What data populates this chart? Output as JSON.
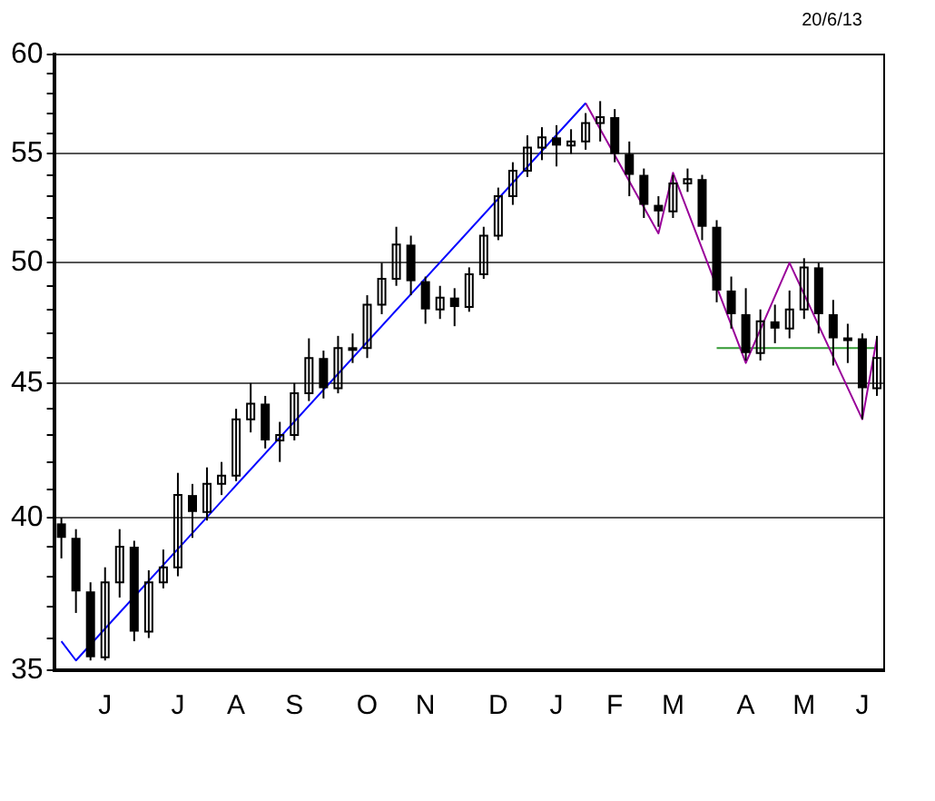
{
  "chart_data": {
    "type": "candlestick",
    "annotations": [
      "20/6/13"
    ],
    "categories": [
      null,
      null,
      null,
      "J",
      null,
      null,
      null,
      null,
      "J",
      null,
      null,
      null,
      "A",
      null,
      null,
      null,
      "S",
      null,
      null,
      null,
      null,
      "O",
      null,
      null,
      null,
      "N",
      null,
      null,
      null,
      null,
      "D",
      null,
      null,
      null,
      "J",
      null,
      null,
      null,
      "F",
      null,
      null,
      null,
      "M",
      null,
      null,
      null,
      null,
      "A",
      null,
      null,
      null,
      "M",
      null,
      null,
      null,
      "J",
      null
    ],
    "ohlc": [
      [
        39.8,
        40.0,
        38.6,
        39.3
      ],
      [
        39.3,
        39.6,
        36.8,
        37.5
      ],
      [
        37.5,
        37.8,
        35.3,
        35.4
      ],
      [
        35.4,
        38.3,
        35.3,
        37.8
      ],
      [
        37.8,
        39.6,
        37.3,
        39.0
      ],
      [
        39.0,
        39.2,
        35.9,
        36.2
      ],
      [
        36.2,
        38.2,
        36.0,
        37.8
      ],
      [
        37.8,
        38.9,
        37.6,
        38.3
      ],
      [
        38.3,
        41.6,
        38.0,
        40.8
      ],
      [
        40.8,
        41.2,
        39.3,
        40.2
      ],
      [
        40.2,
        41.8,
        39.9,
        41.2
      ],
      [
        41.2,
        42.0,
        40.8,
        41.5
      ],
      [
        41.5,
        44.0,
        41.3,
        43.6
      ],
      [
        43.6,
        45.0,
        43.1,
        44.2
      ],
      [
        44.2,
        44.5,
        42.5,
        42.8
      ],
      [
        42.8,
        43.5,
        42.0,
        43.0
      ],
      [
        43.0,
        45.0,
        42.8,
        44.6
      ],
      [
        44.6,
        46.8,
        44.3,
        46.0
      ],
      [
        46.0,
        46.3,
        44.4,
        44.8
      ],
      [
        44.8,
        46.9,
        44.6,
        46.4
      ],
      [
        46.4,
        47.0,
        45.8,
        46.4
      ],
      [
        46.4,
        48.6,
        46.0,
        48.2
      ],
      [
        48.2,
        50.0,
        47.8,
        49.3
      ],
      [
        49.3,
        51.6,
        49.0,
        50.8
      ],
      [
        50.8,
        51.2,
        48.6,
        49.2
      ],
      [
        49.2,
        49.4,
        47.4,
        48.0
      ],
      [
        48.0,
        49.0,
        47.6,
        48.5
      ],
      [
        48.5,
        48.9,
        47.3,
        48.1
      ],
      [
        48.1,
        49.8,
        47.9,
        49.5
      ],
      [
        49.5,
        51.6,
        49.3,
        51.2
      ],
      [
        51.2,
        53.4,
        51.0,
        53.0
      ],
      [
        53.0,
        54.6,
        52.6,
        54.2
      ],
      [
        54.2,
        55.9,
        53.9,
        55.3
      ],
      [
        55.3,
        56.3,
        54.7,
        55.8
      ],
      [
        55.8,
        56.4,
        54.4,
        55.4
      ],
      [
        55.4,
        56.2,
        55.0,
        55.6
      ],
      [
        55.6,
        57.0,
        55.2,
        56.5
      ],
      [
        56.5,
        57.6,
        55.6,
        56.8
      ],
      [
        56.8,
        57.2,
        54.6,
        55.0
      ],
      [
        55.0,
        55.6,
        53.0,
        54.0
      ],
      [
        54.0,
        54.3,
        52.0,
        52.6
      ],
      [
        52.6,
        53.0,
        51.6,
        52.3
      ],
      [
        52.3,
        54.0,
        52.0,
        53.6
      ],
      [
        53.6,
        54.3,
        53.2,
        53.8
      ],
      [
        53.8,
        54.0,
        51.0,
        51.6
      ],
      [
        51.6,
        51.9,
        48.3,
        48.8
      ],
      [
        48.8,
        49.4,
        47.2,
        47.8
      ],
      [
        47.8,
        48.9,
        45.9,
        46.2
      ],
      [
        46.2,
        48.0,
        45.9,
        47.5
      ],
      [
        47.5,
        48.2,
        46.6,
        47.2
      ],
      [
        47.2,
        48.8,
        46.8,
        48.0
      ],
      [
        48.0,
        50.2,
        47.6,
        49.8
      ],
      [
        49.8,
        50.0,
        47.0,
        47.8
      ],
      [
        47.8,
        48.4,
        45.7,
        46.8
      ],
      [
        46.8,
        47.4,
        45.8,
        46.8
      ],
      [
        46.8,
        47.0,
        43.6,
        44.8
      ],
      [
        44.8,
        46.9,
        44.5,
        46.0
      ]
    ],
    "color": "#000000",
    "series": [
      {
        "type": "line",
        "color": "#0000ff",
        "values": [
          35.9,
          35.3,
          null,
          null,
          null,
          null,
          null,
          null,
          null,
          null,
          null,
          null,
          null,
          null,
          null,
          null,
          null,
          null,
          null,
          null,
          null,
          null,
          null,
          null,
          null,
          null,
          null,
          null,
          null,
          null,
          null,
          null,
          null,
          null,
          null,
          null,
          57.5,
          null,
          null,
          null,
          null,
          null,
          null,
          null,
          null,
          null,
          null,
          null,
          null,
          null,
          null,
          null,
          null,
          null,
          null,
          null,
          null
        ]
      },
      {
        "type": "line",
        "color": "#990099",
        "values": [
          null,
          null,
          null,
          null,
          null,
          null,
          null,
          null,
          null,
          null,
          null,
          null,
          null,
          null,
          null,
          null,
          null,
          null,
          null,
          null,
          null,
          null,
          null,
          null,
          null,
          null,
          null,
          null,
          null,
          null,
          null,
          null,
          null,
          null,
          null,
          null,
          57.5,
          null,
          null,
          null,
          null,
          51.3,
          54.1,
          null,
          null,
          null,
          null,
          45.8,
          null,
          null,
          50.0,
          null,
          null,
          null,
          null,
          43.6,
          46.8
        ]
      },
      {
        "type": "line",
        "color": "#339933",
        "values": [
          null,
          null,
          null,
          null,
          null,
          null,
          null,
          null,
          null,
          null,
          null,
          null,
          null,
          null,
          null,
          null,
          null,
          null,
          null,
          null,
          null,
          null,
          null,
          null,
          null,
          null,
          null,
          null,
          null,
          null,
          null,
          null,
          null,
          null,
          null,
          null,
          null,
          null,
          null,
          null,
          null,
          null,
          null,
          null,
          null,
          46.4,
          null,
          null,
          null,
          null,
          null,
          null,
          null,
          null,
          null,
          null,
          46.4
        ]
      }
    ],
    "log": "y",
    "ylim": [
      35,
      60
    ],
    "yticks": [
      35,
      {
        "value": 36,
        "label": null
      },
      {
        "value": 37,
        "label": null
      },
      {
        "value": 38,
        "label": null
      },
      {
        "value": 39,
        "label": null
      },
      40,
      {
        "value": 41,
        "label": null
      },
      {
        "value": 42,
        "label": null
      },
      {
        "value": 43,
        "label": null
      },
      {
        "value": 44,
        "label": null
      },
      45,
      {
        "value": 46,
        "label": null
      },
      {
        "value": 47,
        "label": null
      },
      {
        "value": 48,
        "label": null
      },
      {
        "value": 49,
        "label": null
      },
      50,
      {
        "value": 51,
        "label": null
      },
      {
        "value": 52,
        "label": null
      },
      {
        "value": 53,
        "label": null
      },
      {
        "value": 54,
        "label": null
      },
      55,
      {
        "value": 56,
        "label": null
      },
      {
        "value": 57,
        "label": null
      },
      {
        "value": 58,
        "label": null
      },
      {
        "value": 59,
        "label": null
      },
      60
    ],
    "grid": "y"
  }
}
